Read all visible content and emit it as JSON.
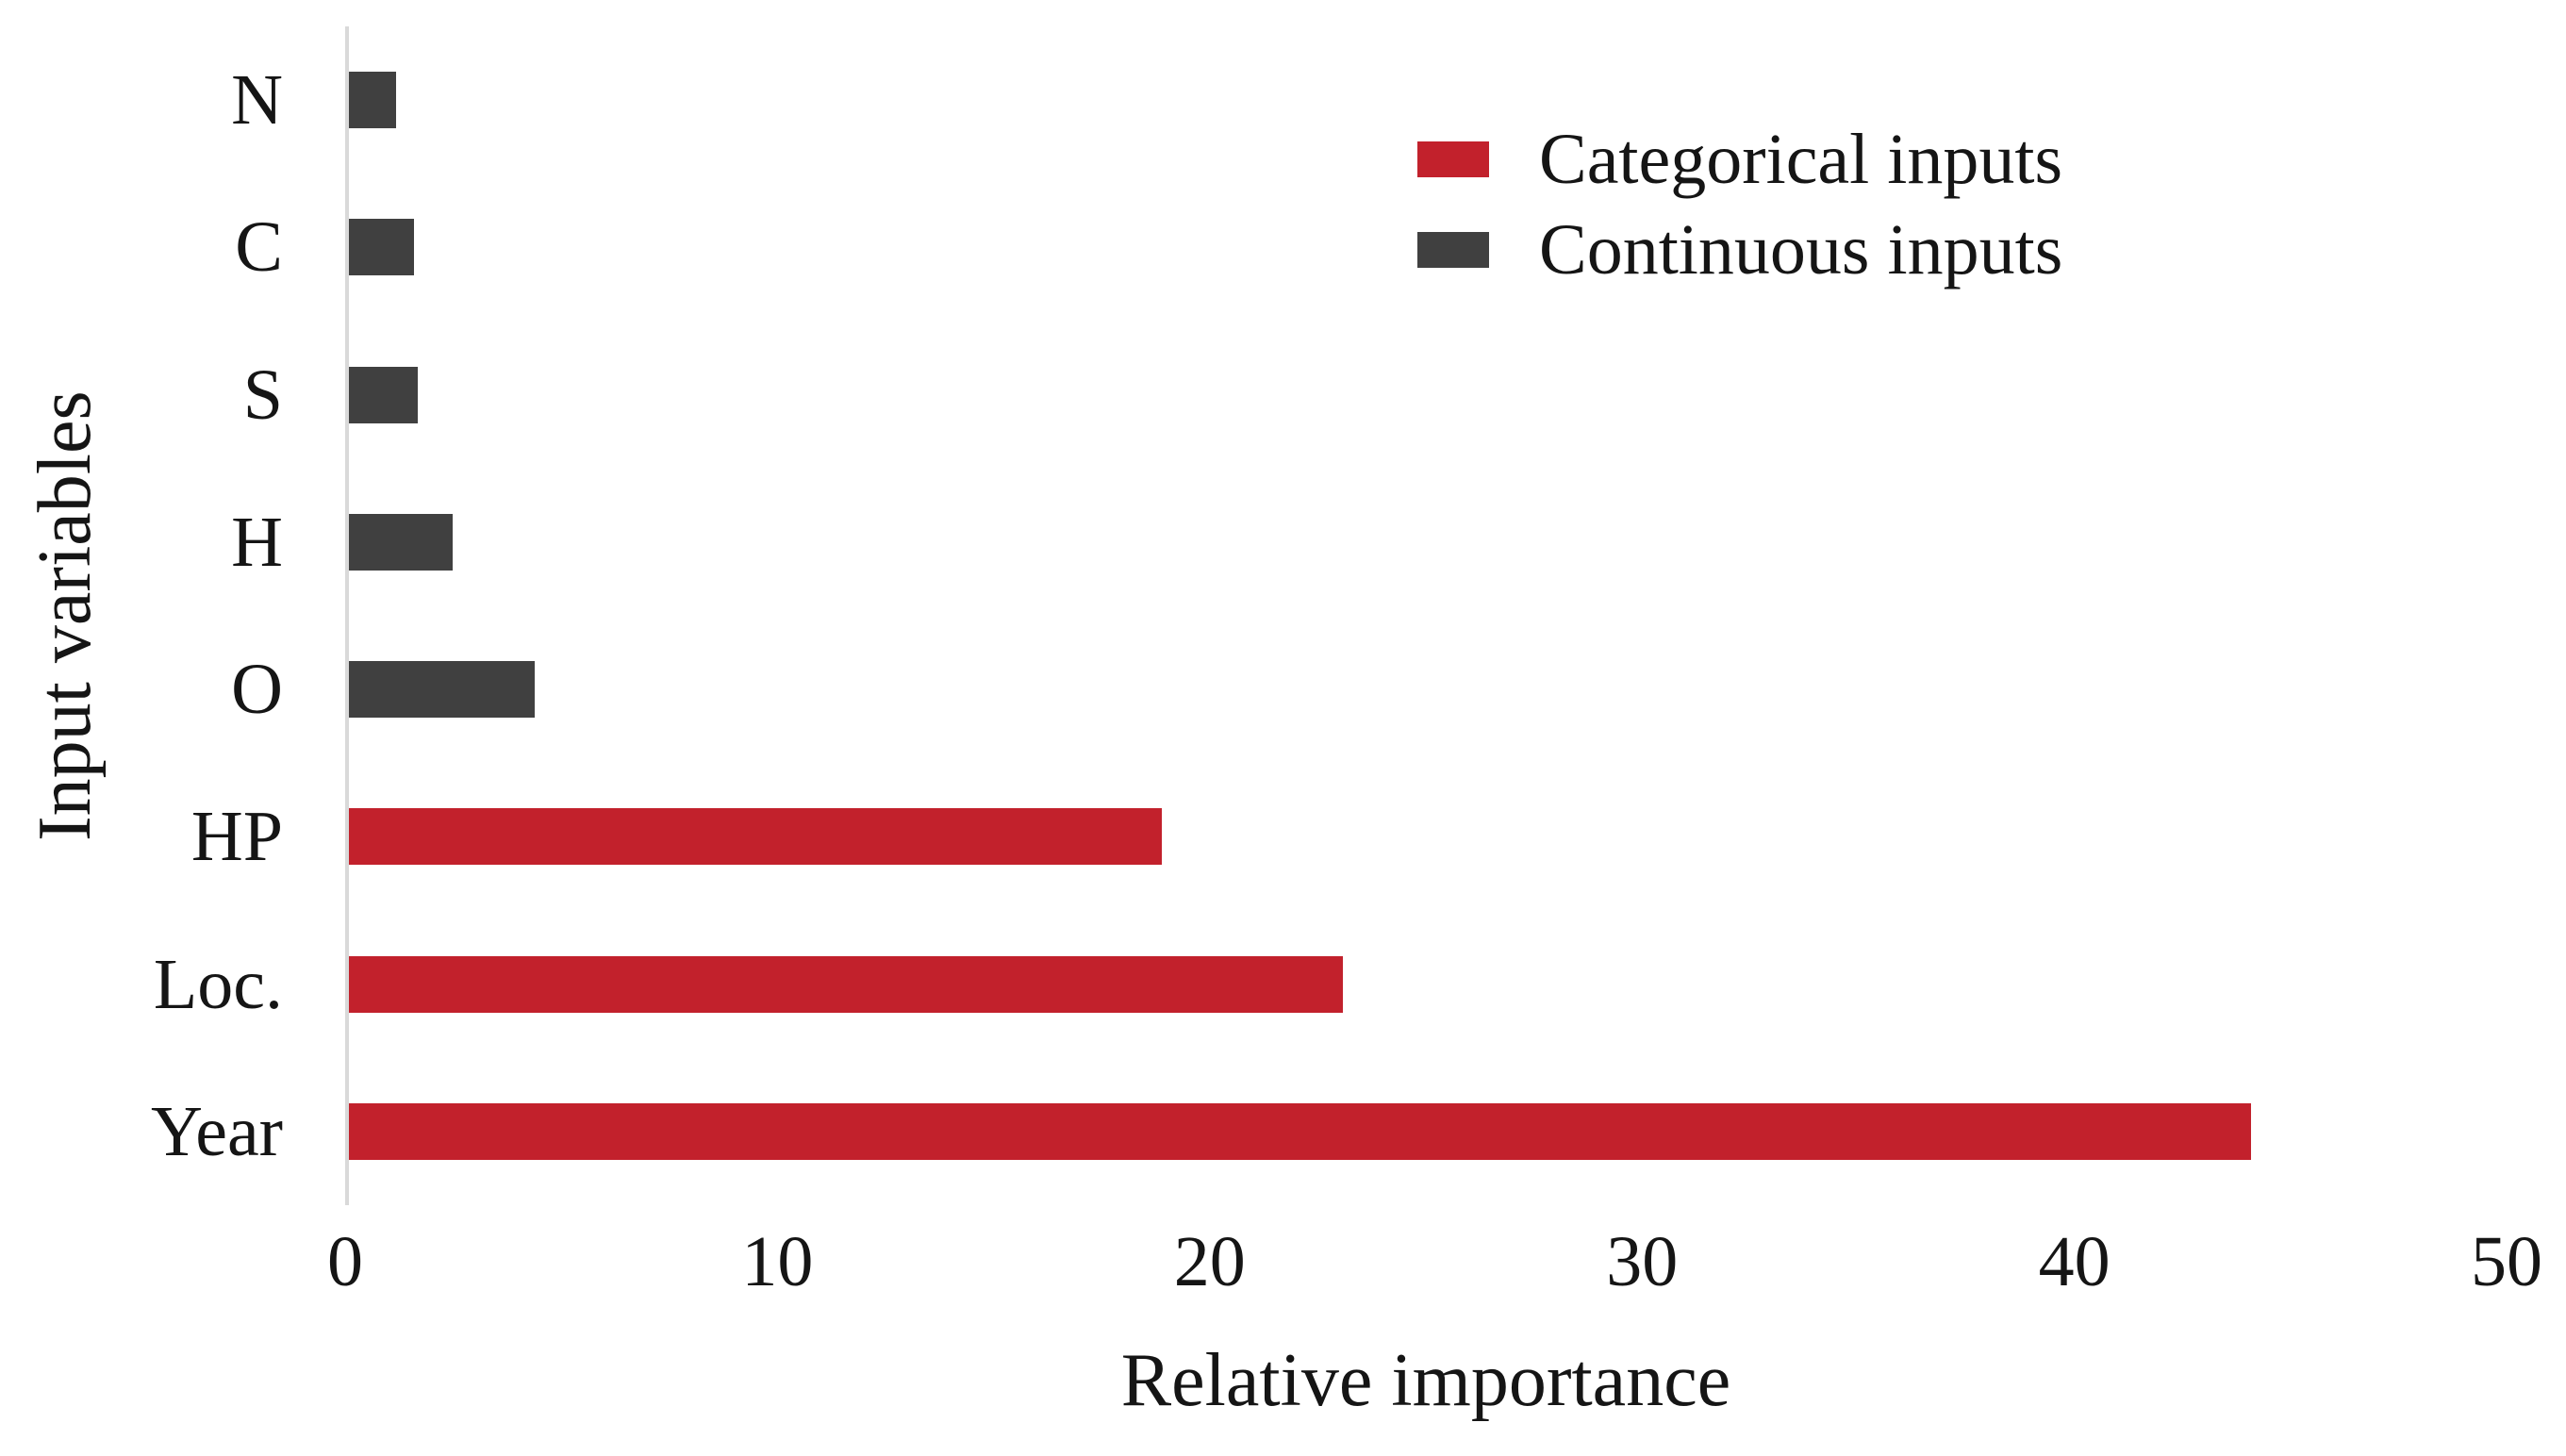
{
  "chart_data": {
    "type": "bar",
    "orientation": "horizontal",
    "categories": [
      "N",
      "C",
      "S",
      "H",
      "O",
      "HP",
      "Loc.",
      "Year"
    ],
    "values": [
      1.1,
      1.5,
      1.6,
      2.4,
      4.3,
      18.8,
      23,
      44
    ],
    "groups": [
      "continuous",
      "continuous",
      "continuous",
      "continuous",
      "continuous",
      "categorical",
      "categorical",
      "categorical"
    ],
    "group_colors": {
      "categorical": "#C2212C",
      "continuous": "#404040"
    },
    "xlabel": "Relative importance",
    "ylabel": "Input variables",
    "xlim": [
      0,
      50
    ],
    "xticks": [
      0,
      10,
      20,
      30,
      40,
      50
    ],
    "grid": false,
    "axis_line_color": "#D9D9D9",
    "text_color": "#151515",
    "background": "#FFFFFF",
    "legend": {
      "position": "top-right",
      "entries": [
        {
          "label": "Categorical inputs",
          "color": "#C2212C"
        },
        {
          "label": "Continuous inputs",
          "color": "#404040"
        }
      ]
    }
  }
}
